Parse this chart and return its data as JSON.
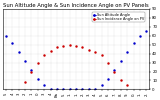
{
  "title": "Sun Altitude Angle & Sun Incidence Angle on PV Panels",
  "legend_labels": [
    "Sun Altitude Angle",
    "Sun Incidence Angle on PV"
  ],
  "legend_colors": [
    "#0000cc",
    "#cc0000"
  ],
  "ylim": [
    0,
    90
  ],
  "yticks": [
    0,
    10,
    20,
    30,
    40,
    50,
    60,
    70,
    80,
    90
  ],
  "ytick_labels": [
    "0",
    "1.",
    "2.",
    "3.",
    "4.",
    "5.",
    "6.",
    "7.",
    "8.",
    "9."
  ],
  "background_color": "#ffffff",
  "grid_color": "#aaaaaa",
  "title_fontsize": 3.8,
  "tick_fontsize": 2.8,
  "legend_fontsize": 2.5,
  "blue_x": [
    1,
    2,
    3,
    4,
    5,
    6,
    7,
    8,
    9,
    10,
    11,
    12,
    13,
    14,
    15,
    16,
    17,
    18,
    19,
    20,
    21,
    22,
    23
  ],
  "blue_y": [
    60,
    52,
    42,
    32,
    22,
    12,
    5,
    0,
    0,
    0,
    0,
    0,
    0,
    0,
    0,
    5,
    12,
    22,
    32,
    42,
    52,
    60,
    65
  ],
  "red_x": [
    4,
    5,
    6,
    7,
    8,
    9,
    10,
    11,
    12,
    13,
    14,
    15,
    16,
    17,
    18,
    19,
    20
  ],
  "red_y": [
    8,
    20,
    30,
    38,
    43,
    47,
    49,
    50,
    49,
    47,
    44,
    42,
    38,
    30,
    20,
    10,
    5
  ],
  "xtick_positions": [
    1,
    2,
    3,
    4,
    5,
    6,
    7,
    8,
    9,
    10,
    11,
    12,
    13,
    14,
    15,
    16,
    17,
    18,
    19,
    20,
    21,
    22,
    23
  ],
  "xtick_labels": [
    "5",
    "4",
    "3",
    "2",
    "1",
    "0",
    "3",
    "4",
    "Ba",
    "5.",
    "1.",
    "1.",
    "2.",
    "3.",
    "4.",
    "5.",
    "6.",
    "7.",
    "8.",
    "9.",
    "0.",
    "1.",
    "2."
  ],
  "xlim": [
    0.5,
    23.5
  ]
}
